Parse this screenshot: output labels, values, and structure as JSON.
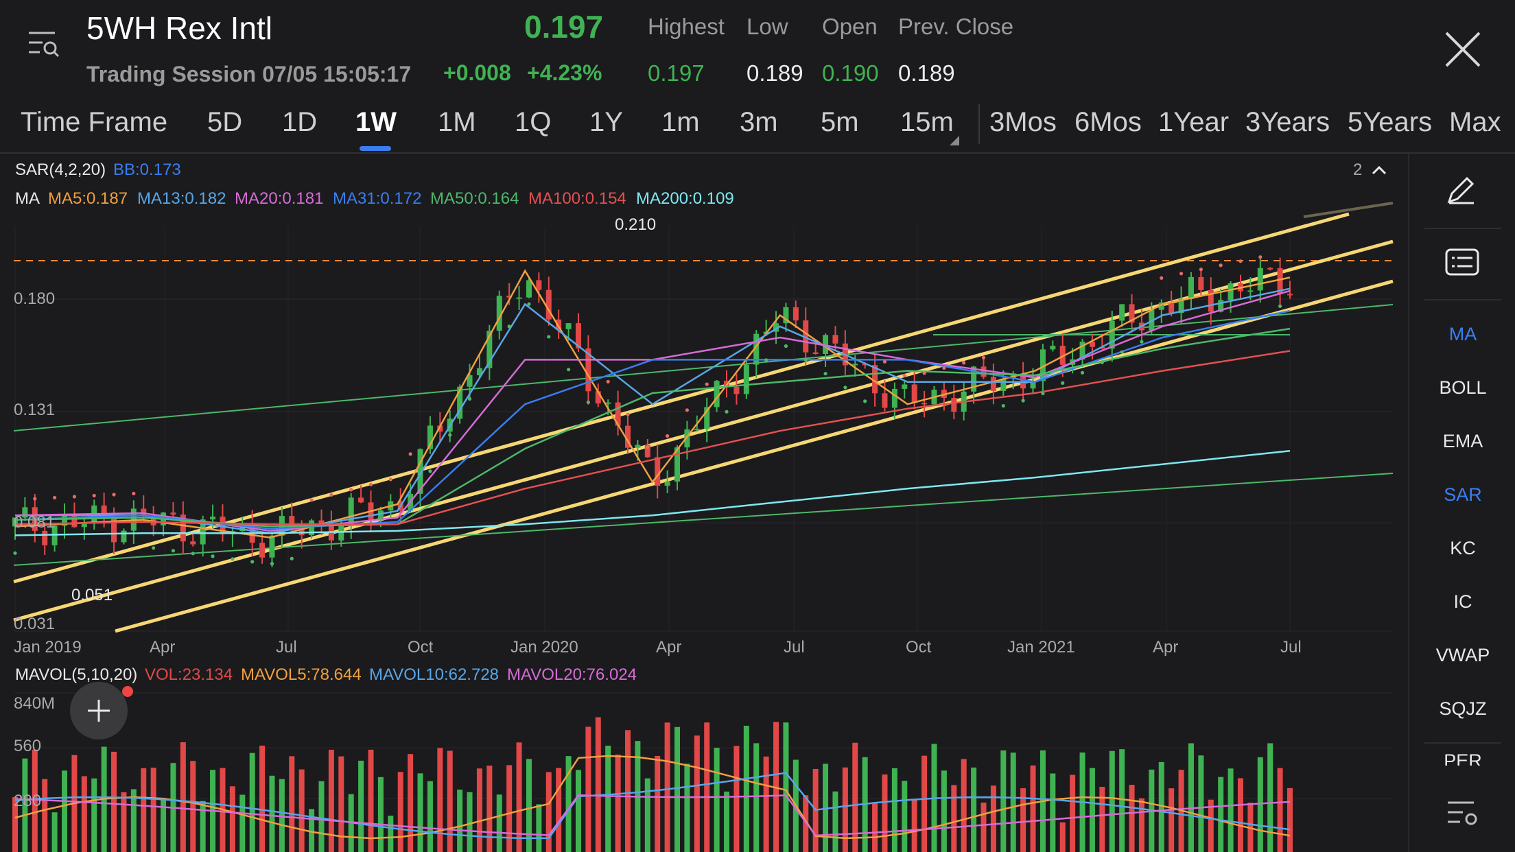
{
  "header": {
    "symbol": "5WH Rex Intl",
    "price": "0.197",
    "session": "Trading Session 07/05 15:05:17",
    "change": "+0.008",
    "change_pct": "+4.23%",
    "stats": [
      {
        "label": "Highest",
        "value": "0.197"
      },
      {
        "label": "Low",
        "value": "0.189"
      },
      {
        "label": "Open",
        "value": "0.190"
      },
      {
        "label": "Prev. Close",
        "value": "0.189"
      }
    ]
  },
  "tabs": {
    "label": "Time Frame",
    "items": [
      "5D",
      "1D",
      "1W",
      "1M",
      "1Q",
      "1Y",
      "1m",
      "3m",
      "5m",
      "15m",
      "3Mos",
      "6Mos",
      "1Year",
      "3Years",
      "5Years",
      "Max"
    ],
    "active": "1W"
  },
  "indicators": {
    "sar": "SAR(4,2,20)",
    "bb": "BB:0.173",
    "page_count": "2",
    "ma_label": "MA",
    "ma": [
      {
        "label": "MA5:0.187",
        "color": "#f0a040"
      },
      {
        "label": "MA13:0.182",
        "color": "#58a6e8"
      },
      {
        "label": "MA20:0.181",
        "color": "#d66bd6"
      },
      {
        "label": "MA31:0.172",
        "color": "#3a7ef0"
      },
      {
        "label": "MA50:0.164",
        "color": "#4cb86a"
      },
      {
        "label": "MA100:0.154",
        "color": "#e45050"
      },
      {
        "label": "MA200:0.109",
        "color": "#7ee8f2"
      }
    ],
    "high_marker": "0.210",
    "low_marker": "0.051"
  },
  "price_axis": [
    "0.180",
    "0.131",
    "0.081",
    "0.031"
  ],
  "date_axis": [
    "Jan 2019",
    "Apr",
    "Jul",
    "Oct",
    "Jan 2020",
    "Apr",
    "Jul",
    "Oct",
    "Jan 2021",
    "Apr",
    "Jul"
  ],
  "volume": {
    "label": "MAVOL(5,10,20)",
    "vol": "VOL:23.134",
    "mavol5": "MAVOL5:78.644",
    "mavol10": "MAVOL10:62.728",
    "mavol20": "MAVOL20:76.024",
    "axis": [
      "840M",
      "560",
      "280"
    ]
  },
  "right_panel": {
    "items": [
      "MA",
      "BOLL",
      "EMA",
      "SAR",
      "KC",
      "IC",
      "VWAP",
      "SQJZ",
      "PER"
    ],
    "active": [
      "MA",
      "SAR"
    ]
  },
  "colors": {
    "up": "#3fb352",
    "down": "#e24848",
    "accent": "#3a7ef0",
    "trendline": "#f7d774",
    "dash": "#f08a3a"
  },
  "chart_data": {
    "type": "candlestick",
    "title": "5WH Rex Intl",
    "ylim": [
      0.031,
      0.21
    ],
    "x": [
      "Jan 2019",
      "Apr 2019",
      "Jul 2019",
      "Oct 2019",
      "Jan 2020",
      "Apr 2020",
      "Jul 2020",
      "Oct 2020",
      "Jan 2021",
      "Apr 2021",
      "Jul 2021"
    ],
    "series": [
      {
        "name": "MA5",
        "values": [
          0.075,
          0.078,
          0.07,
          0.085,
          0.19,
          0.095,
          0.17,
          0.13,
          0.145,
          0.175,
          0.187
        ]
      },
      {
        "name": "MA13",
        "values": [
          0.08,
          0.08,
          0.072,
          0.082,
          0.175,
          0.13,
          0.165,
          0.14,
          0.14,
          0.17,
          0.182
        ]
      },
      {
        "name": "MA20",
        "values": [
          0.08,
          0.081,
          0.073,
          0.079,
          0.15,
          0.15,
          0.16,
          0.15,
          0.142,
          0.165,
          0.181
        ]
      },
      {
        "name": "MA31",
        "values": [
          0.078,
          0.08,
          0.074,
          0.077,
          0.13,
          0.15,
          0.15,
          0.15,
          0.14,
          0.16,
          0.172
        ]
      },
      {
        "name": "MA50",
        "values": [
          0.078,
          0.079,
          0.075,
          0.076,
          0.11,
          0.135,
          0.14,
          0.145,
          0.143,
          0.155,
          0.164
        ]
      },
      {
        "name": "MA100",
        "values": [
          0.076,
          0.077,
          0.076,
          0.076,
          0.092,
          0.105,
          0.118,
          0.128,
          0.135,
          0.145,
          0.154
        ]
      },
      {
        "name": "MA200",
        "values": [
          0.071,
          0.072,
          0.072,
          0.073,
          0.076,
          0.08,
          0.086,
          0.092,
          0.097,
          0.103,
          0.109
        ]
      }
    ]
  }
}
